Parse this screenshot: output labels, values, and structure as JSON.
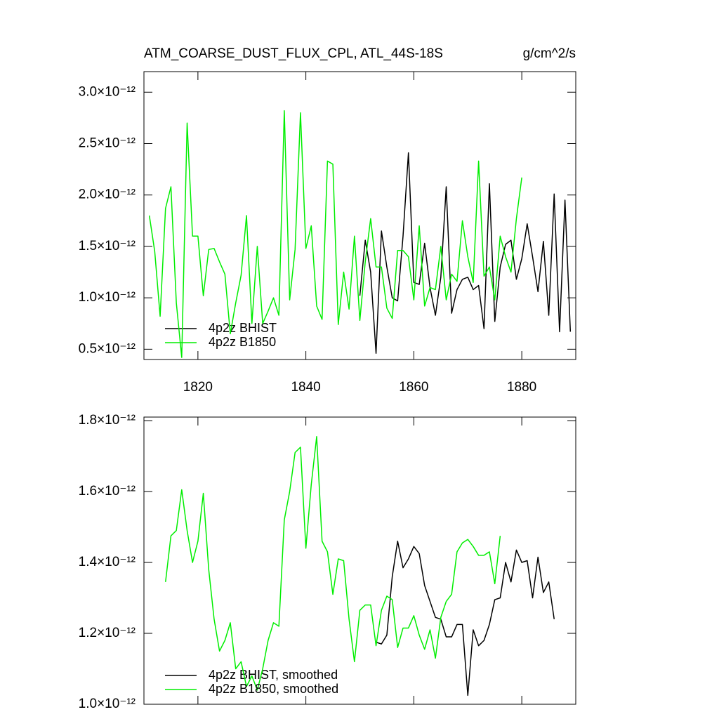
{
  "chart_data": [
    {
      "type": "line",
      "title": "ATM_COARSE_DUST_FLUX_CPL, ATL_44S-18S",
      "units": "g/cm^2/s",
      "xlim": [
        1810,
        1890
      ],
      "xticks": [
        1820,
        1840,
        1860,
        1880
      ],
      "ylim": [
        4e-13,
        3.2e-12
      ],
      "yticks": [
        {
          "value": 5e-13,
          "label": "0.5×10⁻¹²"
        },
        {
          "value": 1e-12,
          "label": "1.0×10⁻¹²"
        },
        {
          "value": 1.5e-12,
          "label": "1.5×10⁻¹²"
        },
        {
          "value": 2e-12,
          "label": "2.0×10⁻¹²"
        },
        {
          "value": 2.5e-12,
          "label": "2.5×10⁻¹²"
        },
        {
          "value": 3e-12,
          "label": "3.0×10⁻¹²"
        }
      ],
      "series": [
        {
          "name": "4p2z BHIST",
          "color": "#000000",
          "x": [
            1850,
            1851,
            1852,
            1853,
            1854,
            1855,
            1856,
            1857,
            1858,
            1859,
            1860,
            1861,
            1862,
            1863,
            1864,
            1865,
            1866,
            1867,
            1868,
            1869,
            1870,
            1871,
            1872,
            1873,
            1874,
            1875,
            1876,
            1877,
            1878,
            1879,
            1880,
            1881,
            1882,
            1883,
            1884,
            1885,
            1886,
            1887,
            1888,
            1889
          ],
          "values": [
            1.02e-12,
            1.56e-12,
            1.25e-12,
            4.6e-13,
            1.65e-12,
            1.3e-12,
            1e-12,
            9.7e-13,
            1.6e-12,
            2.41e-12,
            1.15e-12,
            1.13e-12,
            1.53e-12,
            1.1e-12,
            8.3e-13,
            1.2e-12,
            2.08e-12,
            8.5e-13,
            1.08e-12,
            1.18e-12,
            1.2e-12,
            1.08e-12,
            1.12e-12,
            7e-13,
            2.11e-12,
            7.7e-13,
            1.3e-12,
            1.52e-12,
            1.56e-12,
            1.18e-12,
            1.38e-12,
            1.72e-12,
            1.4e-12,
            1.06e-12,
            1.55e-12,
            8.3e-13,
            2.01e-12,
            6.7e-13,
            1.95e-12,
            6.7e-13
          ]
        },
        {
          "name": "4p2z B1850",
          "color": "#00ee00",
          "x": [
            1811,
            1812,
            1813,
            1814,
            1815,
            1816,
            1817,
            1818,
            1819,
            1820,
            1821,
            1822,
            1823,
            1824,
            1825,
            1826,
            1827,
            1828,
            1829,
            1830,
            1831,
            1832,
            1833,
            1834,
            1835,
            1836,
            1837,
            1838,
            1839,
            1840,
            1841,
            1842,
            1843,
            1844,
            1845,
            1846,
            1847,
            1848,
            1849,
            1850,
            1851,
            1852,
            1853,
            1854,
            1855,
            1856,
            1857,
            1858,
            1859,
            1860,
            1861,
            1862,
            1863,
            1864,
            1865,
            1866,
            1867,
            1868,
            1869,
            1870,
            1871,
            1872,
            1873,
            1874,
            1875,
            1876,
            1877,
            1878,
            1879,
            1880
          ],
          "values": [
            1.8e-12,
            1.45e-12,
            8.2e-13,
            1.87e-12,
            2.08e-12,
            9.5e-13,
            4.2e-13,
            2.7e-12,
            1.6e-12,
            1.6e-12,
            1.02e-12,
            1.47e-12,
            1.48e-12,
            1.35e-12,
            1.23e-12,
            6.5e-13,
            9.5e-13,
            1.22e-12,
            1.8e-12,
            7.5e-13,
            1.5e-12,
            7.5e-13,
            8.7e-13,
            1e-12,
            8.3e-13,
            2.82e-12,
            9.8e-13,
            1.47e-12,
            2.8e-12,
            1.48e-12,
            1.7e-12,
            9.2e-13,
            7.9e-13,
            2.33e-12,
            2.3e-12,
            7.4e-13,
            1.25e-12,
            8.9e-13,
            1.6e-12,
            7.8e-13,
            1.35e-12,
            1.77e-12,
            1.3e-12,
            1.3e-12,
            9e-13,
            8e-13,
            1.46e-12,
            1.46e-12,
            1.4e-12,
            9.8e-13,
            1.7e-12,
            9.2e-13,
            1.1e-12,
            1.08e-12,
            1.5e-12,
            9.8e-13,
            1.23e-12,
            1.16e-12,
            1.75e-12,
            1.4e-12,
            1.15e-12,
            2.33e-12,
            1.21e-12,
            1.3e-12,
            9.8e-13,
            1.6e-12,
            1.4e-12,
            1.25e-12,
            1.77e-12,
            2.17e-12
          ]
        }
      ]
    },
    {
      "type": "line",
      "xlim": [
        1810,
        1890
      ],
      "xticks": [
        1820,
        1840,
        1860,
        1880
      ],
      "ylim": [
        1e-12,
        1.81e-12
      ],
      "yticks": [
        {
          "value": 1e-12,
          "label": "1.0×10⁻¹²"
        },
        {
          "value": 1.2e-12,
          "label": "1.2×10⁻¹²"
        },
        {
          "value": 1.4e-12,
          "label": "1.4×10⁻¹²"
        },
        {
          "value": 1.6e-12,
          "label": "1.6×10⁻¹²"
        },
        {
          "value": 1.8e-12,
          "label": "1.8×10⁻¹²"
        }
      ],
      "series": [
        {
          "name": "4p2z BHIST, smoothed",
          "color": "#000000",
          "x": [
            1853,
            1854,
            1855,
            1856,
            1857,
            1858,
            1859,
            1860,
            1861,
            1862,
            1863,
            1864,
            1865,
            1866,
            1867,
            1868,
            1869,
            1870,
            1871,
            1872,
            1873,
            1874,
            1875,
            1876,
            1877,
            1878,
            1879,
            1880,
            1881,
            1882,
            1883,
            1884,
            1885,
            1886
          ],
          "values": [
            1.175e-12,
            1.17e-12,
            1.195e-12,
            1.36e-12,
            1.46e-12,
            1.385e-12,
            1.41e-12,
            1.445e-12,
            1.425e-12,
            1.335e-12,
            1.29e-12,
            1.245e-12,
            1.24e-12,
            1.19e-12,
            1.19e-12,
            1.225e-12,
            1.225e-12,
            1.025e-12,
            1.21e-12,
            1.165e-12,
            1.18e-12,
            1.225e-12,
            1.295e-12,
            1.3e-12,
            1.4e-12,
            1.345e-12,
            1.435e-12,
            1.4e-12,
            1.405e-12,
            1.3e-12,
            1.415e-12,
            1.315e-12,
            1.345e-12,
            1.24e-12
          ]
        },
        {
          "name": "4p2z B1850, smoothed",
          "color": "#00ee00",
          "x": [
            1814,
            1815,
            1816,
            1817,
            1818,
            1819,
            1820,
            1821,
            1822,
            1823,
            1824,
            1825,
            1826,
            1827,
            1828,
            1829,
            1830,
            1831,
            1832,
            1833,
            1834,
            1835,
            1836,
            1837,
            1838,
            1839,
            1840,
            1841,
            1842,
            1843,
            1844,
            1845,
            1846,
            1847,
            1848,
            1849,
            1850,
            1851,
            1852,
            1853,
            1854,
            1855,
            1856,
            1857,
            1858,
            1859,
            1860,
            1861,
            1862,
            1863,
            1864,
            1865,
            1866,
            1867,
            1868,
            1869,
            1870,
            1871,
            1872,
            1873,
            1874,
            1875,
            1876
          ],
          "values": [
            1.345e-12,
            1.475e-12,
            1.49e-12,
            1.605e-12,
            1.49e-12,
            1.4e-12,
            1.46e-12,
            1.595e-12,
            1.38e-12,
            1.24e-12,
            1.15e-12,
            1.18e-12,
            1.23e-12,
            1.1e-12,
            1.12e-12,
            1.05e-12,
            1.08e-12,
            1.04e-12,
            1.1e-12,
            1.18e-12,
            1.23e-12,
            1.22e-12,
            1.52e-12,
            1.6e-12,
            1.71e-12,
            1.725e-12,
            1.44e-12,
            1.62e-12,
            1.755e-12,
            1.46e-12,
            1.43e-12,
            1.31e-12,
            1.41e-12,
            1.405e-12,
            1.24e-12,
            1.12e-12,
            1.265e-12,
            1.28e-12,
            1.28e-12,
            1.165e-12,
            1.265e-12,
            1.305e-12,
            1.295e-12,
            1.16e-12,
            1.215e-12,
            1.215e-12,
            1.25e-12,
            1.195e-12,
            1.155e-12,
            1.21e-12,
            1.13e-12,
            1.245e-12,
            1.29e-12,
            1.31e-12,
            1.43e-12,
            1.455e-12,
            1.465e-12,
            1.445e-12,
            1.42e-12,
            1.42e-12,
            1.43e-12,
            1.34e-12,
            1.475e-12
          ]
        }
      ]
    }
  ]
}
